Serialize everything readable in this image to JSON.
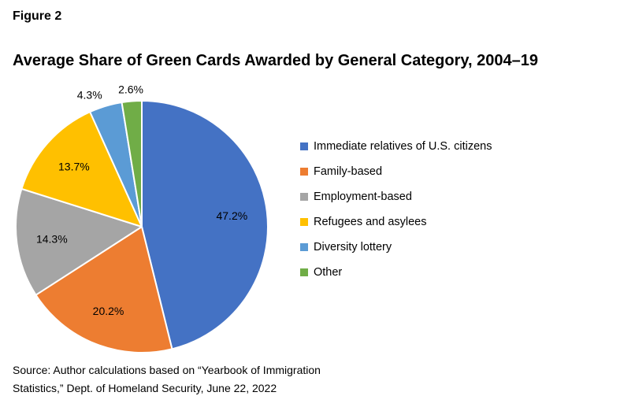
{
  "figure_label": "Figure 2",
  "chart_data": {
    "type": "pie",
    "title": "Average Share of Green Cards Awarded by General Category, 2004–19",
    "unit": "%",
    "legend_position": "right",
    "slices": [
      {
        "label": "Immediate relatives of U.S. citizens",
        "value": 47.2,
        "value_label": "47.2%",
        "color": "#4472C4"
      },
      {
        "label": "Family-based",
        "value": 20.2,
        "value_label": "20.2%",
        "color": "#ED7D31"
      },
      {
        "label": "Employment-based",
        "value": 14.3,
        "value_label": "14.3%",
        "color": "#A5A5A5"
      },
      {
        "label": "Refugees and asylees",
        "value": 13.7,
        "value_label": "13.7%",
        "color": "#FFC000"
      },
      {
        "label": "Diversity lottery",
        "value": 4.3,
        "value_label": "4.3%",
        "color": "#5B9BD5"
      },
      {
        "label": "Other",
        "value": 2.6,
        "value_label": "2.6%",
        "color": "#70AD47"
      }
    ]
  },
  "source": {
    "line1": "Source: Author calculations based on “Yearbook of Immigration",
    "line2": "Statistics,” Dept. of Homeland Security, June 22, 2022"
  }
}
